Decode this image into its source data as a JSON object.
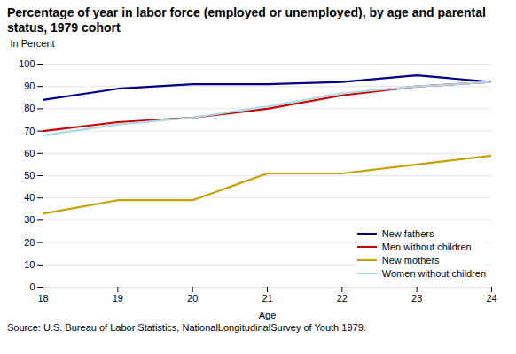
{
  "chart_data": {
    "type": "line",
    "title": "Percentage of year in labor force (employed or unemployed), by age and parental status, 1979 cohort",
    "xlabel": "Age",
    "ylabel": "In Percent",
    "source": "Source: U.S. Bureau of Labor Statistics, NationalLongitudinalSurvey of Youth 1979.",
    "x": [
      18,
      19,
      20,
      21,
      22,
      23,
      24
    ],
    "series": [
      {
        "name": "New fathers",
        "color": "#00008B",
        "values": [
          84,
          89,
          91,
          91,
          92,
          95,
          92
        ]
      },
      {
        "name": "Men without children",
        "color": "#CC0000",
        "values": [
          70,
          74,
          76,
          80,
          86,
          90,
          92
        ]
      },
      {
        "name": "New mothers",
        "color": "#C8A000",
        "values": [
          33,
          39,
          39,
          51,
          51,
          55,
          59
        ]
      },
      {
        "name": "Women without children",
        "color": "#ADD8E6",
        "values": [
          68,
          73,
          76,
          81,
          87,
          90,
          92
        ]
      }
    ],
    "xlim": [
      18,
      24
    ],
    "xticks": [
      18,
      19,
      20,
      21,
      22,
      23,
      24
    ],
    "ylim": [
      0,
      100
    ],
    "yticks": [
      0,
      10,
      20,
      30,
      40,
      50,
      60,
      70,
      80,
      90,
      100
    ],
    "grid": true,
    "legend": "lower right"
  }
}
